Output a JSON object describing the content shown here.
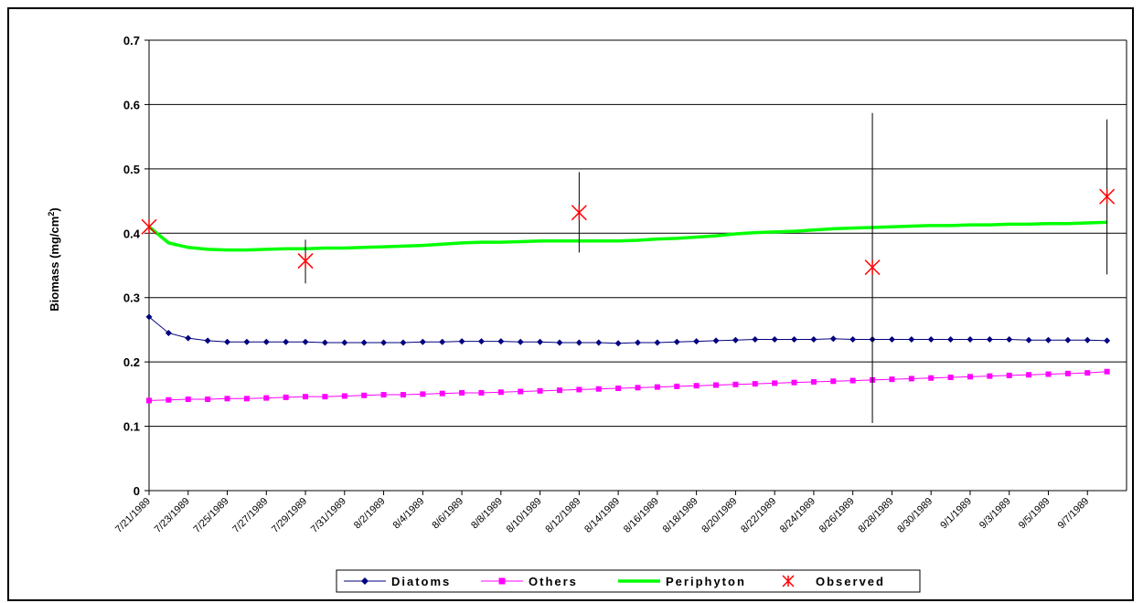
{
  "chart_data": {
    "type": "line",
    "ylabel": "Biomass (mg/cm²)",
    "ylabel_main": "Biomass (mg/cm",
    "ylabel_sup": "2",
    "ylabel_close": ")",
    "xlabel": "",
    "title": "",
    "ylim": [
      0,
      0.7
    ],
    "xlim": [
      "1989-07-21",
      "1989-09-09"
    ],
    "y_ticks": [
      "0",
      "0.1",
      "0.2",
      "0.3",
      "0.4",
      "0.5",
      "0.6",
      "0.7"
    ],
    "x_ticks": [
      "7/21/1989",
      "7/23/1989",
      "7/25/1989",
      "7/27/1989",
      "7/29/1989",
      "7/31/1989",
      "8/2/1989",
      "8/4/1989",
      "8/6/1989",
      "8/8/1989",
      "8/10/1989",
      "8/12/1989",
      "8/14/1989",
      "8/16/1989",
      "8/18/1989",
      "8/20/1989",
      "8/22/1989",
      "8/24/1989",
      "8/26/1989",
      "8/28/1989",
      "8/30/1989",
      "9/1/1989",
      "9/3/1989",
      "9/5/1989",
      "9/7/1989"
    ],
    "grid": "horizontal",
    "legend_position": "bottom",
    "series": [
      {
        "name": "Diatoms",
        "color": "#000080",
        "marker": "diamond",
        "start_date": "1989-07-21",
        "values": [
          0.27,
          0.245,
          0.237,
          0.233,
          0.231,
          0.231,
          0.231,
          0.231,
          0.231,
          0.23,
          0.23,
          0.23,
          0.23,
          0.23,
          0.231,
          0.231,
          0.232,
          0.232,
          0.232,
          0.231,
          0.231,
          0.23,
          0.23,
          0.23,
          0.229,
          0.23,
          0.23,
          0.231,
          0.232,
          0.233,
          0.234,
          0.235,
          0.235,
          0.235,
          0.235,
          0.236,
          0.235,
          0.235,
          0.235,
          0.235,
          0.235,
          0.235,
          0.235,
          0.235,
          0.235,
          0.234,
          0.234,
          0.234,
          0.234,
          0.233
        ]
      },
      {
        "name": "Others",
        "color": "#ff00ff",
        "marker": "square",
        "start_date": "1989-07-21",
        "values": [
          0.14,
          0.141,
          0.142,
          0.142,
          0.143,
          0.143,
          0.144,
          0.145,
          0.146,
          0.146,
          0.147,
          0.148,
          0.149,
          0.149,
          0.15,
          0.151,
          0.152,
          0.152,
          0.153,
          0.154,
          0.155,
          0.156,
          0.157,
          0.158,
          0.159,
          0.16,
          0.161,
          0.162,
          0.163,
          0.164,
          0.165,
          0.166,
          0.167,
          0.168,
          0.169,
          0.17,
          0.171,
          0.172,
          0.173,
          0.174,
          0.175,
          0.176,
          0.177,
          0.178,
          0.179,
          0.18,
          0.181,
          0.182,
          0.183,
          0.185
        ]
      },
      {
        "name": "Periphyton",
        "color": "#00ff00",
        "marker": "none",
        "start_date": "1989-07-21",
        "values": [
          0.41,
          0.385,
          0.378,
          0.375,
          0.374,
          0.374,
          0.375,
          0.376,
          0.376,
          0.377,
          0.377,
          0.378,
          0.379,
          0.38,
          0.381,
          0.383,
          0.385,
          0.386,
          0.386,
          0.387,
          0.388,
          0.388,
          0.388,
          0.388,
          0.388,
          0.389,
          0.391,
          0.392,
          0.394,
          0.396,
          0.399,
          0.401,
          0.402,
          0.403,
          0.405,
          0.407,
          0.408,
          0.409,
          0.41,
          0.411,
          0.412,
          0.412,
          0.413,
          0.413,
          0.414,
          0.414,
          0.415,
          0.415,
          0.416,
          0.417
        ]
      }
    ],
    "observed": {
      "name": "Observed",
      "color": "#ff0000",
      "marker": "asterisk",
      "points": [
        {
          "date": "1989-07-21",
          "y": 0.41
        },
        {
          "date": "1989-07-29",
          "y": 0.357,
          "err_low": 0.322,
          "err_high": 0.39
        },
        {
          "date": "1989-08-12",
          "y": 0.432,
          "err_low": 0.37,
          "err_high": 0.495
        },
        {
          "date": "1989-08-27",
          "y": 0.347,
          "err_low": 0.105,
          "err_high": 0.587
        },
        {
          "date": "1989-09-08",
          "y": 0.457,
          "err_low": 0.336,
          "err_high": 0.577
        }
      ]
    }
  }
}
